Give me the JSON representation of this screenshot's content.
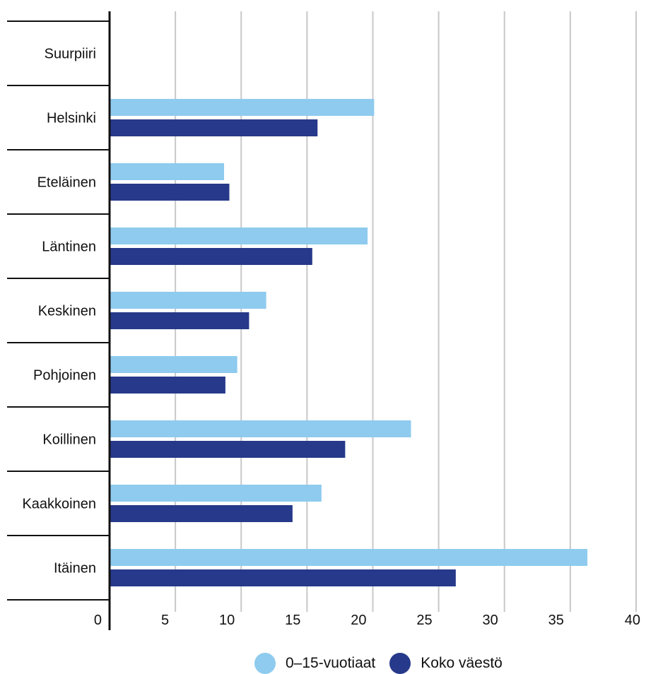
{
  "chart_data": {
    "type": "bar",
    "orientation": "horizontal",
    "header_label": "Suurpiiri",
    "categories": [
      "Helsinki",
      "Eteläinen",
      "Läntinen",
      "Keskinen",
      "Pohjoinen",
      "Koillinen",
      "Kaakkoinen",
      "Itäinen"
    ],
    "series": [
      {
        "name": "0–15-vuotiaat",
        "color": "#8ecbee",
        "values": [
          20.1,
          8.7,
          19.6,
          11.9,
          9.7,
          22.9,
          16.1,
          36.3
        ]
      },
      {
        "name": "Koko väestö",
        "color": "#26398a",
        "values": [
          15.8,
          9.1,
          15.4,
          10.6,
          8.8,
          17.9,
          13.9,
          26.3
        ]
      }
    ],
    "xlim": [
      0,
      40
    ],
    "xticks": [
      "0",
      "5",
      "10",
      "15",
      "20",
      "25",
      "30",
      "35",
      "40"
    ],
    "grid": true,
    "legend_position": "bottom"
  }
}
